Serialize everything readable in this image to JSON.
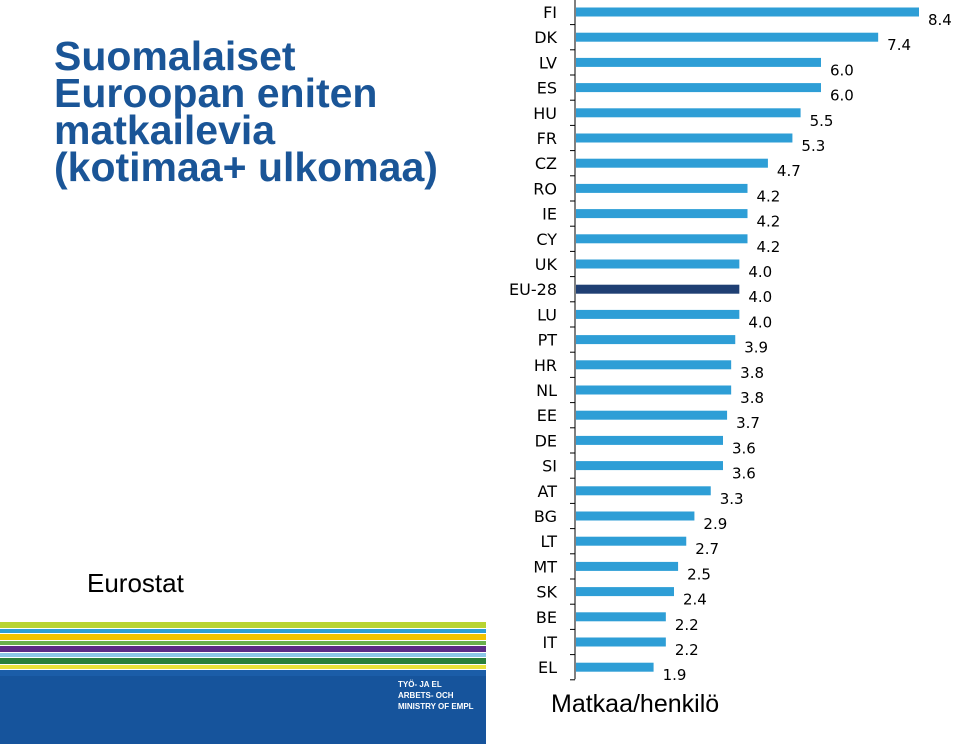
{
  "slide": {
    "title_lines": [
      "Suomalaiset",
      "Euroopan eniten",
      "matkailevia",
      "(kotimaa+ ulkomaa)"
    ],
    "source": "Eurostat",
    "logo_lines": [
      "TYÖ- JA EL",
      "ARBETS- OCH",
      "MINISTRY OF EMPL"
    ],
    "stripe_colors": [
      "#b8d432",
      "#2e9ed6",
      "#f3c300",
      "#6ab04c",
      "#5b2a86",
      "#8cc7e8",
      "#2a7f3a",
      "#e9e23a",
      "#1b5da8"
    ]
  },
  "chart_data": {
    "type": "bar",
    "orientation": "horizontal",
    "categories": [
      "FI",
      "DK",
      "LV",
      "ES",
      "HU",
      "FR",
      "CZ",
      "RO",
      "IE",
      "CY",
      "UK",
      "EU-28",
      "LU",
      "PT",
      "HR",
      "NL",
      "EE",
      "DE",
      "SI",
      "AT",
      "BG",
      "LT",
      "MT",
      "SK",
      "BE",
      "IT",
      "EL"
    ],
    "values": [
      8.4,
      7.4,
      6.0,
      6.0,
      5.5,
      5.3,
      4.7,
      4.2,
      4.2,
      4.2,
      4.0,
      4.0,
      4.0,
      3.9,
      3.8,
      3.8,
      3.7,
      3.6,
      3.6,
      3.3,
      2.9,
      2.7,
      2.5,
      2.4,
      2.2,
      2.2,
      1.9
    ],
    "value_labels": [
      "8.4",
      "7.4",
      "6.0",
      "6.0",
      "5.5",
      "5.3",
      "4.7",
      "4.2",
      "4.2",
      "4.2",
      "4.0",
      "4.0",
      "4.0",
      "3.9",
      "3.8",
      "3.8",
      "3.7",
      "3.6",
      "3.6",
      "3.3",
      "2.9",
      "2.7",
      "2.5",
      "2.4",
      "2.2",
      "2.2",
      "1.9"
    ],
    "highlight_category": "EU-28",
    "xlabel": "Matkaa/henkilö",
    "xlim": [
      0,
      8.4
    ],
    "grid": false,
    "colors": {
      "bar": "#2e9ed6",
      "highlight": "#1f3f73",
      "axis": "#000000"
    }
  }
}
